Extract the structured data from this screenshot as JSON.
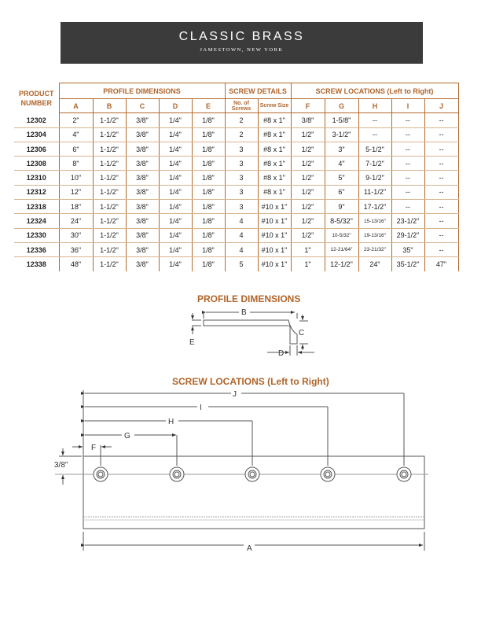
{
  "header": {
    "brand": "CLASSIC BRASS",
    "location": "JAMESTOWN, NEW YORK",
    "background": "#3b3b3b"
  },
  "accent": "#b0652a",
  "table": {
    "product_header": "PRODUCT NUMBER",
    "groups": {
      "profile": "PROFILE DIMENSIONS",
      "screw_details": "SCREW DETAILS",
      "screw_locations": "SCREW LOCATIONS (Left to Right)"
    },
    "columns": [
      "A",
      "B",
      "C",
      "D",
      "E",
      "No. of Screws",
      "Screw Size",
      "F",
      "G",
      "H",
      "I",
      "J"
    ],
    "rows": [
      [
        "12302",
        "2\"",
        "1-1/2\"",
        "3/8\"",
        "1/4\"",
        "1/8\"",
        "2",
        "#8 x 1\"",
        "3/8\"",
        "1-5/8\"",
        "--",
        "--",
        "--"
      ],
      [
        "12304",
        "4\"",
        "1-1/2\"",
        "3/8\"",
        "1/4\"",
        "1/8\"",
        "2",
        "#8 x 1\"",
        "1/2\"",
        "3-1/2\"",
        "--",
        "--",
        "--"
      ],
      [
        "12306",
        "6\"",
        "1-1/2\"",
        "3/8\"",
        "1/4\"",
        "1/8\"",
        "3",
        "#8 x 1\"",
        "1/2\"",
        "3\"",
        "5-1/2\"",
        "--",
        "--"
      ],
      [
        "12308",
        "8\"",
        "1-1/2\"",
        "3/8\"",
        "1/4\"",
        "1/8\"",
        "3",
        "#8 x 1\"",
        "1/2\"",
        "4\"",
        "7-1/2\"",
        "--",
        "--"
      ],
      [
        "12310",
        "10\"",
        "1-1/2\"",
        "3/8\"",
        "1/4\"",
        "1/8\"",
        "3",
        "#8 x 1\"",
        "1/2\"",
        "5\"",
        "9-1/2\"",
        "--",
        "--"
      ],
      [
        "12312",
        "12\"",
        "1-1/2\"",
        "3/8\"",
        "1/4\"",
        "1/8\"",
        "3",
        "#8 x 1\"",
        "1/2\"",
        "6\"",
        "11-1/2\"",
        "--",
        "--"
      ],
      [
        "12318",
        "18\"",
        "1-1/2\"",
        "3/8\"",
        "1/4\"",
        "1/8\"",
        "3",
        "#10 x 1\"",
        "1/2\"",
        "9\"",
        "17-1/2\"",
        "--",
        "--"
      ],
      [
        "12324",
        "24\"",
        "1-1/2\"",
        "3/8\"",
        "1/4\"",
        "1/8\"",
        "4",
        "#10 x 1\"",
        "1/2\"",
        "8-5/32\"",
        "15-13/16\"",
        "23-1/2\"",
        "--"
      ],
      [
        "12330",
        "30\"",
        "1-1/2\"",
        "3/8\"",
        "1/4\"",
        "1/8\"",
        "4",
        "#10 x 1\"",
        "1/2\"",
        "10-5/32\"",
        "19-13/16\"",
        "29-1/2\"",
        "--"
      ],
      [
        "12336",
        "36\"",
        "1-1/2\"",
        "3/8\"",
        "1/4\"",
        "1/8\"",
        "4",
        "#10 x 1\"",
        "1\"",
        "12-21/64\"",
        "23-21/32\"",
        "35\"",
        "--"
      ],
      [
        "12338",
        "48\"",
        "1-1/2\"",
        "3/8\"",
        "1/4\"",
        "1/8\"",
        "5",
        "#10 x 1\"",
        "1\"",
        "12-1/2\"",
        "24\"",
        "35-1/2\"",
        "47\""
      ]
    ]
  },
  "profile_diagram": {
    "title": "PROFILE DIMENSIONS",
    "labels": {
      "B": "B",
      "C": "C",
      "D": "D",
      "E": "E"
    }
  },
  "screw_diagram": {
    "title": "SCREW LOCATIONS (Left to Right)",
    "labels": {
      "A": "A",
      "F": "F",
      "G": "G",
      "H": "H",
      "I": "I",
      "J": "J",
      "offset": "3/8\""
    }
  }
}
